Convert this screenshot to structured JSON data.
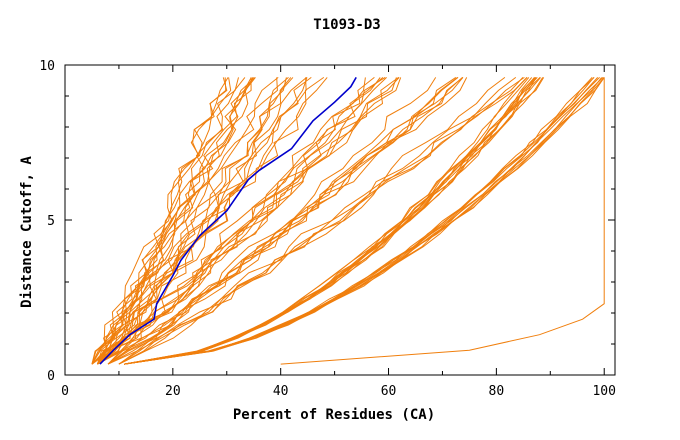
{
  "chart_data": {
    "type": "line",
    "title": "T1093-D3",
    "xlabel": "Percent of Residues (CA)",
    "ylabel": "Distance Cutoff, A",
    "xlim": [
      0,
      102
    ],
    "ylim": [
      0,
      10
    ],
    "x_ticks": [
      "0",
      "20",
      "40",
      "60",
      "80",
      "100"
    ],
    "y_ticks": [
      "0",
      "5",
      "10"
    ],
    "grid": false,
    "background_color": "#ffffff",
    "colors": {
      "models": "#f07f0d",
      "highlight": "#0000cc"
    },
    "highlight_series": {
      "x": [
        6.5,
        9,
        12,
        16.5,
        17,
        20,
        21.5,
        25,
        30,
        34,
        36,
        42,
        46,
        50,
        53,
        54
      ],
      "y": [
        0.35,
        0.8,
        1.3,
        1.8,
        2.3,
        3.2,
        3.7,
        4.5,
        5.3,
        6.3,
        6.6,
        7.3,
        8.2,
        8.8,
        9.3,
        9.6
      ]
    },
    "series_groups": [
      {
        "group": "steep",
        "start": [
          5,
          0.35
        ],
        "end": [
          33,
          9.6
        ],
        "count": 12,
        "spread": 1.7
      },
      {
        "group": "steep2",
        "start": [
          6,
          0.35
        ],
        "end": [
          44,
          9.6
        ],
        "count": 12,
        "spread": 1.8
      },
      {
        "group": "mid",
        "start": [
          6,
          0.35
        ],
        "end": [
          58,
          9.6
        ],
        "count": 10,
        "spread": 1.8
      },
      {
        "group": "wide",
        "start": [
          8,
          0.35
        ],
        "end": [
          72,
          9.6
        ],
        "count": 8,
        "spread": 1.6
      },
      {
        "group": "wider",
        "start": [
          10,
          0.35
        ],
        "end": [
          84,
          9.6
        ],
        "count": 5,
        "spread": 1.5
      },
      {
        "group": "flat_to_87",
        "start": [
          11,
          0.35
        ],
        "end": [
          87,
          9.6
        ],
        "count": 12,
        "spread": 0.6
      },
      {
        "group": "flat_to_100",
        "start": [
          11,
          0.35
        ],
        "end": [
          99,
          9.6
        ],
        "count": 10,
        "spread": 0.5
      },
      {
        "group": "outlier",
        "points": [
          [
            40,
            0.35
          ],
          [
            75,
            0.8
          ],
          [
            88,
            1.3
          ],
          [
            96,
            1.8
          ],
          [
            100,
            2.3
          ],
          [
            100,
            9.6
          ]
        ]
      }
    ]
  }
}
